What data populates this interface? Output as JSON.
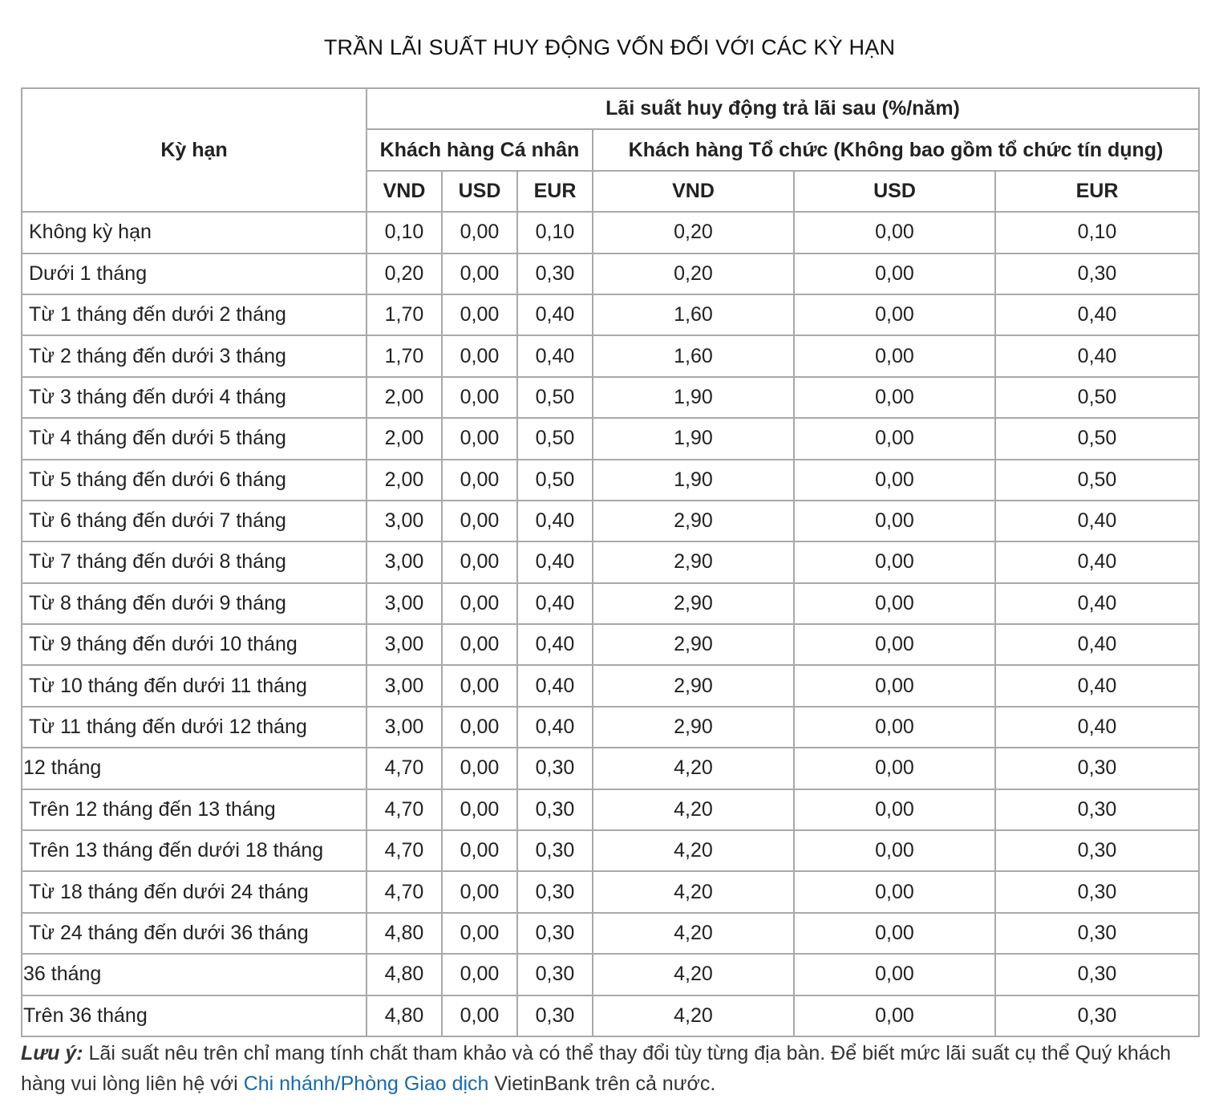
{
  "title": "TRẦN LÃI SUẤT HUY ĐỘNG VỐN ĐỐI VỚI CÁC KỲ HẠN",
  "table": {
    "term_header": "Kỳ hạn",
    "rate_header": "Lãi suất huy động trả lãi sau (%/năm)",
    "group_individual": "Khách hàng Cá nhân",
    "group_organization": "Khách hàng Tổ chức (Không bao gồm tổ chức tín dụng)",
    "currencies": [
      "VND",
      "USD",
      "EUR",
      "VND",
      "USD",
      "EUR"
    ],
    "rows": [
      {
        "term": "Không kỳ hạn",
        "values": [
          "0,10",
          "0,00",
          "0,10",
          "0,20",
          "0,00",
          "0,10"
        ]
      },
      {
        "term": "Dưới 1 tháng",
        "values": [
          "0,20",
          "0,00",
          "0,30",
          "0,20",
          "0,00",
          "0,30"
        ]
      },
      {
        "term": "Từ 1 tháng đến dưới 2 tháng",
        "values": [
          "1,70",
          "0,00",
          "0,40",
          "1,60",
          "0,00",
          "0,40"
        ]
      },
      {
        "term": "Từ 2 tháng đến dưới 3 tháng",
        "values": [
          "1,70",
          "0,00",
          "0,40",
          "1,60",
          "0,00",
          "0,40"
        ]
      },
      {
        "term": "Từ 3 tháng đến dưới 4 tháng",
        "values": [
          "2,00",
          "0,00",
          "0,50",
          "1,90",
          "0,00",
          "0,50"
        ]
      },
      {
        "term": "Từ 4 tháng đến dưới 5 tháng",
        "values": [
          "2,00",
          "0,00",
          "0,50",
          "1,90",
          "0,00",
          "0,50"
        ]
      },
      {
        "term": "Từ 5 tháng đến dưới 6 tháng",
        "values": [
          "2,00",
          "0,00",
          "0,50",
          "1,90",
          "0,00",
          "0,50"
        ]
      },
      {
        "term": "Từ 6 tháng đến dưới 7 tháng",
        "values": [
          "3,00",
          "0,00",
          "0,40",
          "2,90",
          "0,00",
          "0,40"
        ]
      },
      {
        "term": "Từ 7 tháng đến dưới 8 tháng",
        "values": [
          "3,00",
          "0,00",
          "0,40",
          "2,90",
          "0,00",
          "0,40"
        ]
      },
      {
        "term": "Từ 8 tháng đến dưới 9 tháng",
        "values": [
          "3,00",
          "0,00",
          "0,40",
          "2,90",
          "0,00",
          "0,40"
        ]
      },
      {
        "term": "Từ 9 tháng đến dưới 10 tháng",
        "values": [
          "3,00",
          "0,00",
          "0,40",
          "2,90",
          "0,00",
          "0,40"
        ]
      },
      {
        "term": "Từ 10 tháng đến dưới 11 tháng",
        "values": [
          "3,00",
          "0,00",
          "0,40",
          "2,90",
          "0,00",
          "0,40"
        ]
      },
      {
        "term": "Từ 11 tháng đến dưới 12 tháng",
        "values": [
          "3,00",
          "0,00",
          "0,40",
          "2,90",
          "0,00",
          "0,40"
        ]
      },
      {
        "term": "12 tháng",
        "values": [
          "4,70",
          "0,00",
          "0,30",
          "4,20",
          "0,00",
          "0,30"
        ]
      },
      {
        "term": "Trên 12 tháng đến 13 tháng",
        "values": [
          "4,70",
          "0,00",
          "0,30",
          "4,20",
          "0,00",
          "0,30"
        ]
      },
      {
        "term": "Trên 13 tháng đến dưới 18 tháng",
        "values": [
          "4,70",
          "0,00",
          "0,30",
          "4,20",
          "0,00",
          "0,30"
        ]
      },
      {
        "term": "Từ 18 tháng đến dưới 24 tháng",
        "values": [
          "4,70",
          "0,00",
          "0,30",
          "4,20",
          "0,00",
          "0,30"
        ]
      },
      {
        "term": "Từ 24 tháng đến dưới 36 tháng",
        "values": [
          "4,80",
          "0,00",
          "0,30",
          "4,20",
          "0,00",
          "0,30"
        ]
      },
      {
        "term": "36 tháng",
        "values": [
          "4,80",
          "0,00",
          "0,30",
          "4,20",
          "0,00",
          "0,30"
        ]
      },
      {
        "term": "Trên 36 tháng",
        "values": [
          "4,80",
          "0,00",
          "0,30",
          "4,20",
          "0,00",
          "0,30"
        ]
      }
    ]
  },
  "note": {
    "label": "Lưu ý:",
    "text_before": " Lãi suất nêu trên chỉ mang tính chất tham khảo và có thể thay đổi tùy từng địa bàn. Để biết mức lãi suất cụ thể Quý khách hàng vui lòng liên hệ với ",
    "link": "Chi nhánh/Phòng Giao dịch",
    "text_after": " VietinBank trên cả nước."
  },
  "colors": {
    "link": "#1a6aa8",
    "border": "#a9a9a9"
  }
}
